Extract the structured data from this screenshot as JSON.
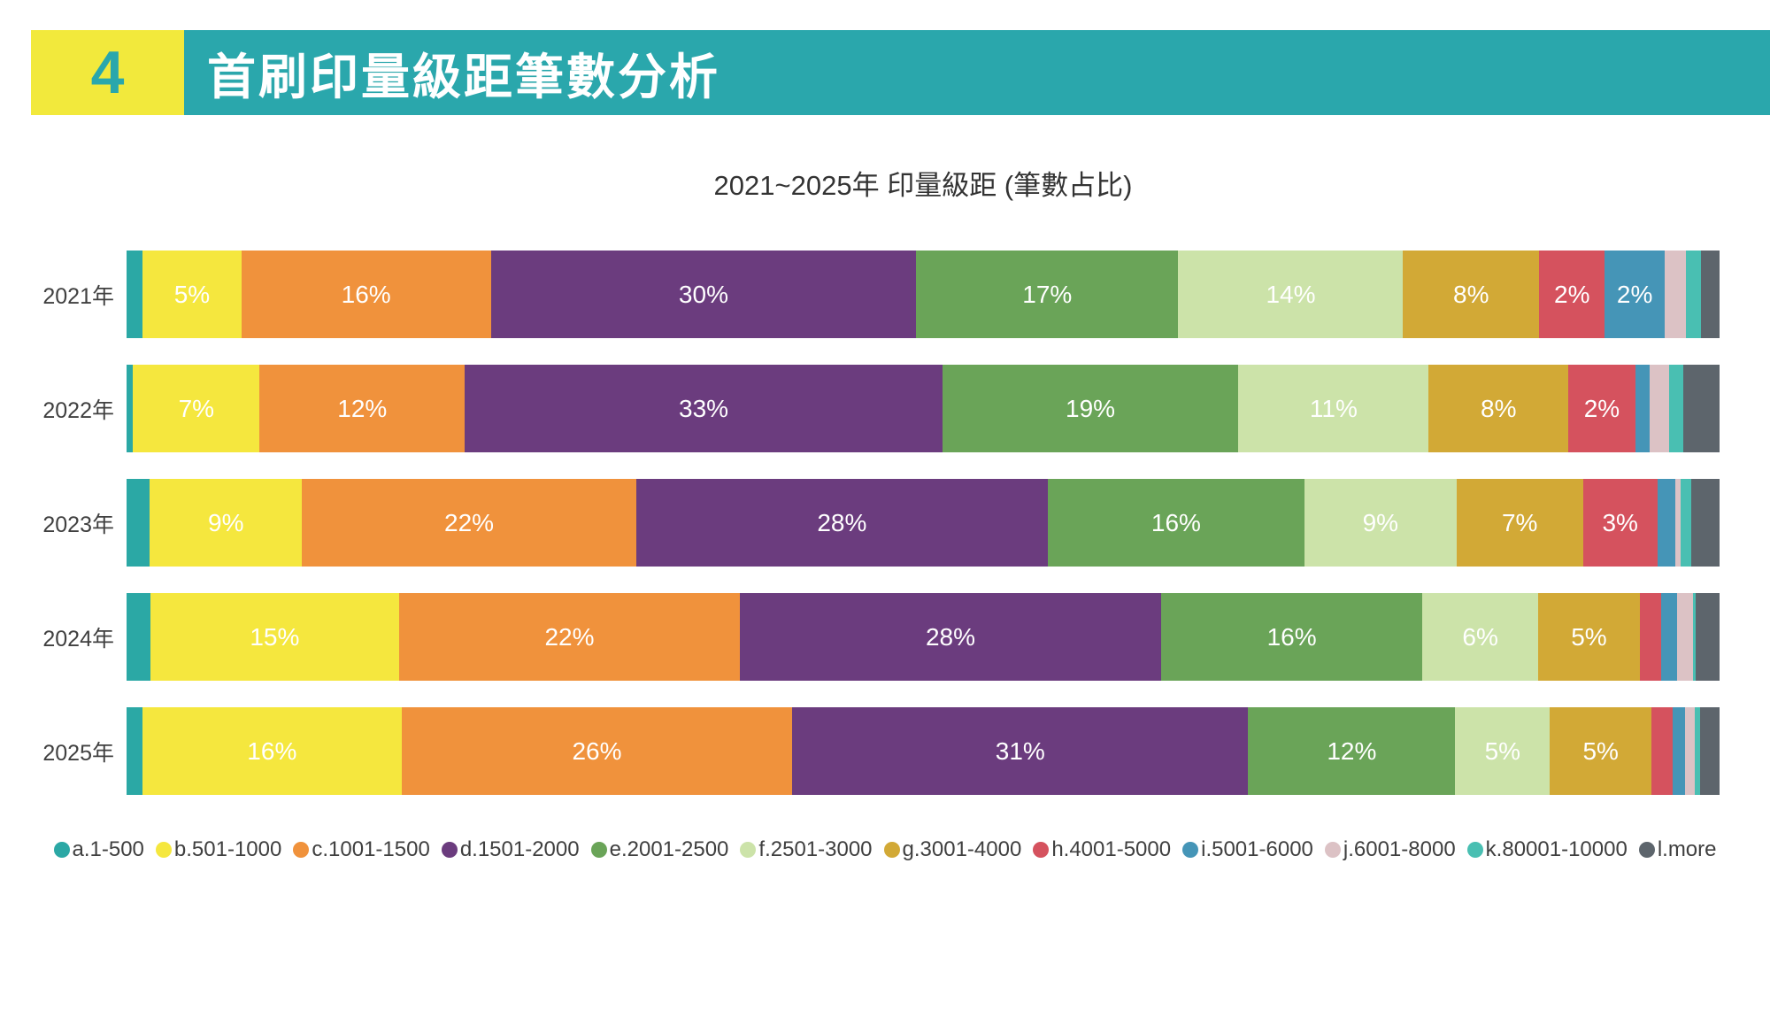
{
  "header": {
    "number": "4",
    "title": "首刷印量級距筆數分析"
  },
  "chart_data": {
    "type": "bar",
    "variant": "horizontal-stacked-percentage",
    "title": "2021~2025年 印量級距 (筆數占比)",
    "categories": [
      "2021年",
      "2022年",
      "2023年",
      "2024年",
      "2025年"
    ],
    "unit": "%",
    "grid": false,
    "axis_ticks": "none",
    "legend_position": "bottom-center",
    "series": [
      {
        "name": "a.1-500",
        "color": "#2BA8A5",
        "values": [
          1.3,
          0.5,
          1.8,
          1.8,
          1.2
        ]
      },
      {
        "name": "b.501-1000",
        "color": "#F5E73E",
        "values": [
          5,
          7,
          9,
          15,
          16
        ]
      },
      {
        "name": "c.1001-1500",
        "color": "#F0923C",
        "values": [
          16,
          12,
          22,
          22,
          26
        ]
      },
      {
        "name": "d.1501-2000",
        "color": "#6B3C7E",
        "values": [
          30,
          33,
          28,
          28,
          31
        ]
      },
      {
        "name": "e.2001-2500",
        "color": "#6AA458",
        "values": [
          17,
          19,
          16,
          16,
          12
        ]
      },
      {
        "name": "f.2501-3000",
        "color": "#CCE3A9",
        "values": [
          14,
          11,
          9,
          6,
          4.5
        ]
      },
      {
        "name": "g.3001-4000",
        "color": "#D2A936",
        "values": [
          8,
          8,
          7,
          5,
          5
        ]
      },
      {
        "name": "h.4001-5000",
        "color": "#D5525E",
        "values": [
          2.4,
          2.4,
          3,
          1.6,
          1.6
        ]
      },
      {
        "name": "i.5001-6000",
        "color": "#4595B7",
        "values": [
          1.9,
          1.1,
          1.4,
          1.2,
          1.0
        ]
      },
      {
        "name": "j.6001-8000",
        "color": "#DCC2C5",
        "values": [
          1.7,
          1.5,
          0.4,
          1.2,
          0.7
        ]
      },
      {
        "name": "k.80001-10000",
        "color": "#49BFB2",
        "values": [
          1.2,
          1.1,
          0.8,
          0.2,
          0.4
        ]
      },
      {
        "name": "l.more",
        "color": "#5D656C",
        "values": [
          1.5,
          2.8,
          2.2,
          1.8,
          1.5
        ]
      }
    ],
    "segment_labels": [
      [
        "",
        "5%",
        "16%",
        "30%",
        "17%",
        "14%",
        "8%",
        "2%",
        "2%",
        "",
        "",
        ""
      ],
      [
        "",
        "7%",
        "12%",
        "33%",
        "19%",
        "11%",
        "8%",
        "2%",
        "",
        "",
        "",
        ""
      ],
      [
        "",
        "9%",
        "22%",
        "28%",
        "16%",
        "9%",
        "7%",
        "3%",
        "",
        "",
        "",
        ""
      ],
      [
        "",
        "15%",
        "22%",
        "28%",
        "16%",
        "6%",
        "5%",
        "",
        "",
        "",
        "",
        ""
      ],
      [
        "",
        "16%",
        "26%",
        "31%",
        "12%",
        "5%",
        "5%",
        "",
        "",
        "",
        "",
        ""
      ]
    ]
  },
  "colors": {
    "header_teal": "#2AA7AC",
    "badge_yellow": "#F2E93C",
    "year_label_text": "#404040",
    "bar_label_text": "#FFFFFF",
    "legend_text": "#3F3F3F"
  }
}
